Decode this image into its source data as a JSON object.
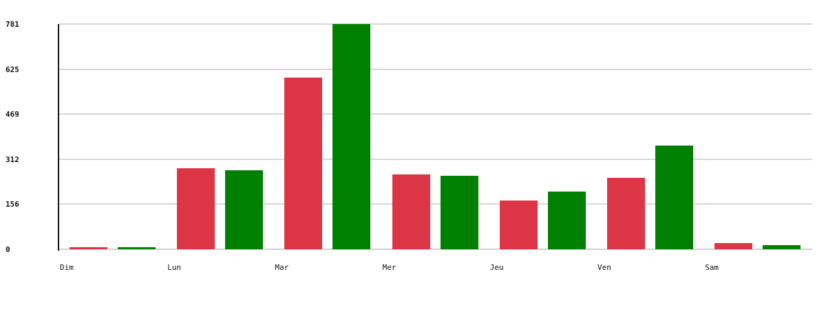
{
  "chart_data": {
    "type": "bar",
    "title": "",
    "xlabel": "",
    "ylabel": "",
    "categories": [
      "Dim",
      "Lun",
      "Mar",
      "Mer",
      "Jeu",
      "Ven",
      "Sam"
    ],
    "series": [
      {
        "name": "red",
        "color": "#dc3545",
        "values": [
          8,
          282,
          595,
          259,
          168,
          248,
          21
        ]
      },
      {
        "name": "green",
        "color": "#008000",
        "values": [
          7,
          273,
          781,
          256,
          200,
          359,
          14
        ]
      }
    ],
    "ylim": [
      0,
      781
    ],
    "yticks": [
      0,
      156,
      312,
      469,
      625,
      781
    ],
    "grid": "horizontal",
    "legend": "none"
  },
  "colors": {
    "background": "#ffffff",
    "red_bar": "#dc3545",
    "green_bar": "#008000",
    "gridline": "#d7d7d7",
    "axis_line": "#161616",
    "label_text": "#111111"
  }
}
